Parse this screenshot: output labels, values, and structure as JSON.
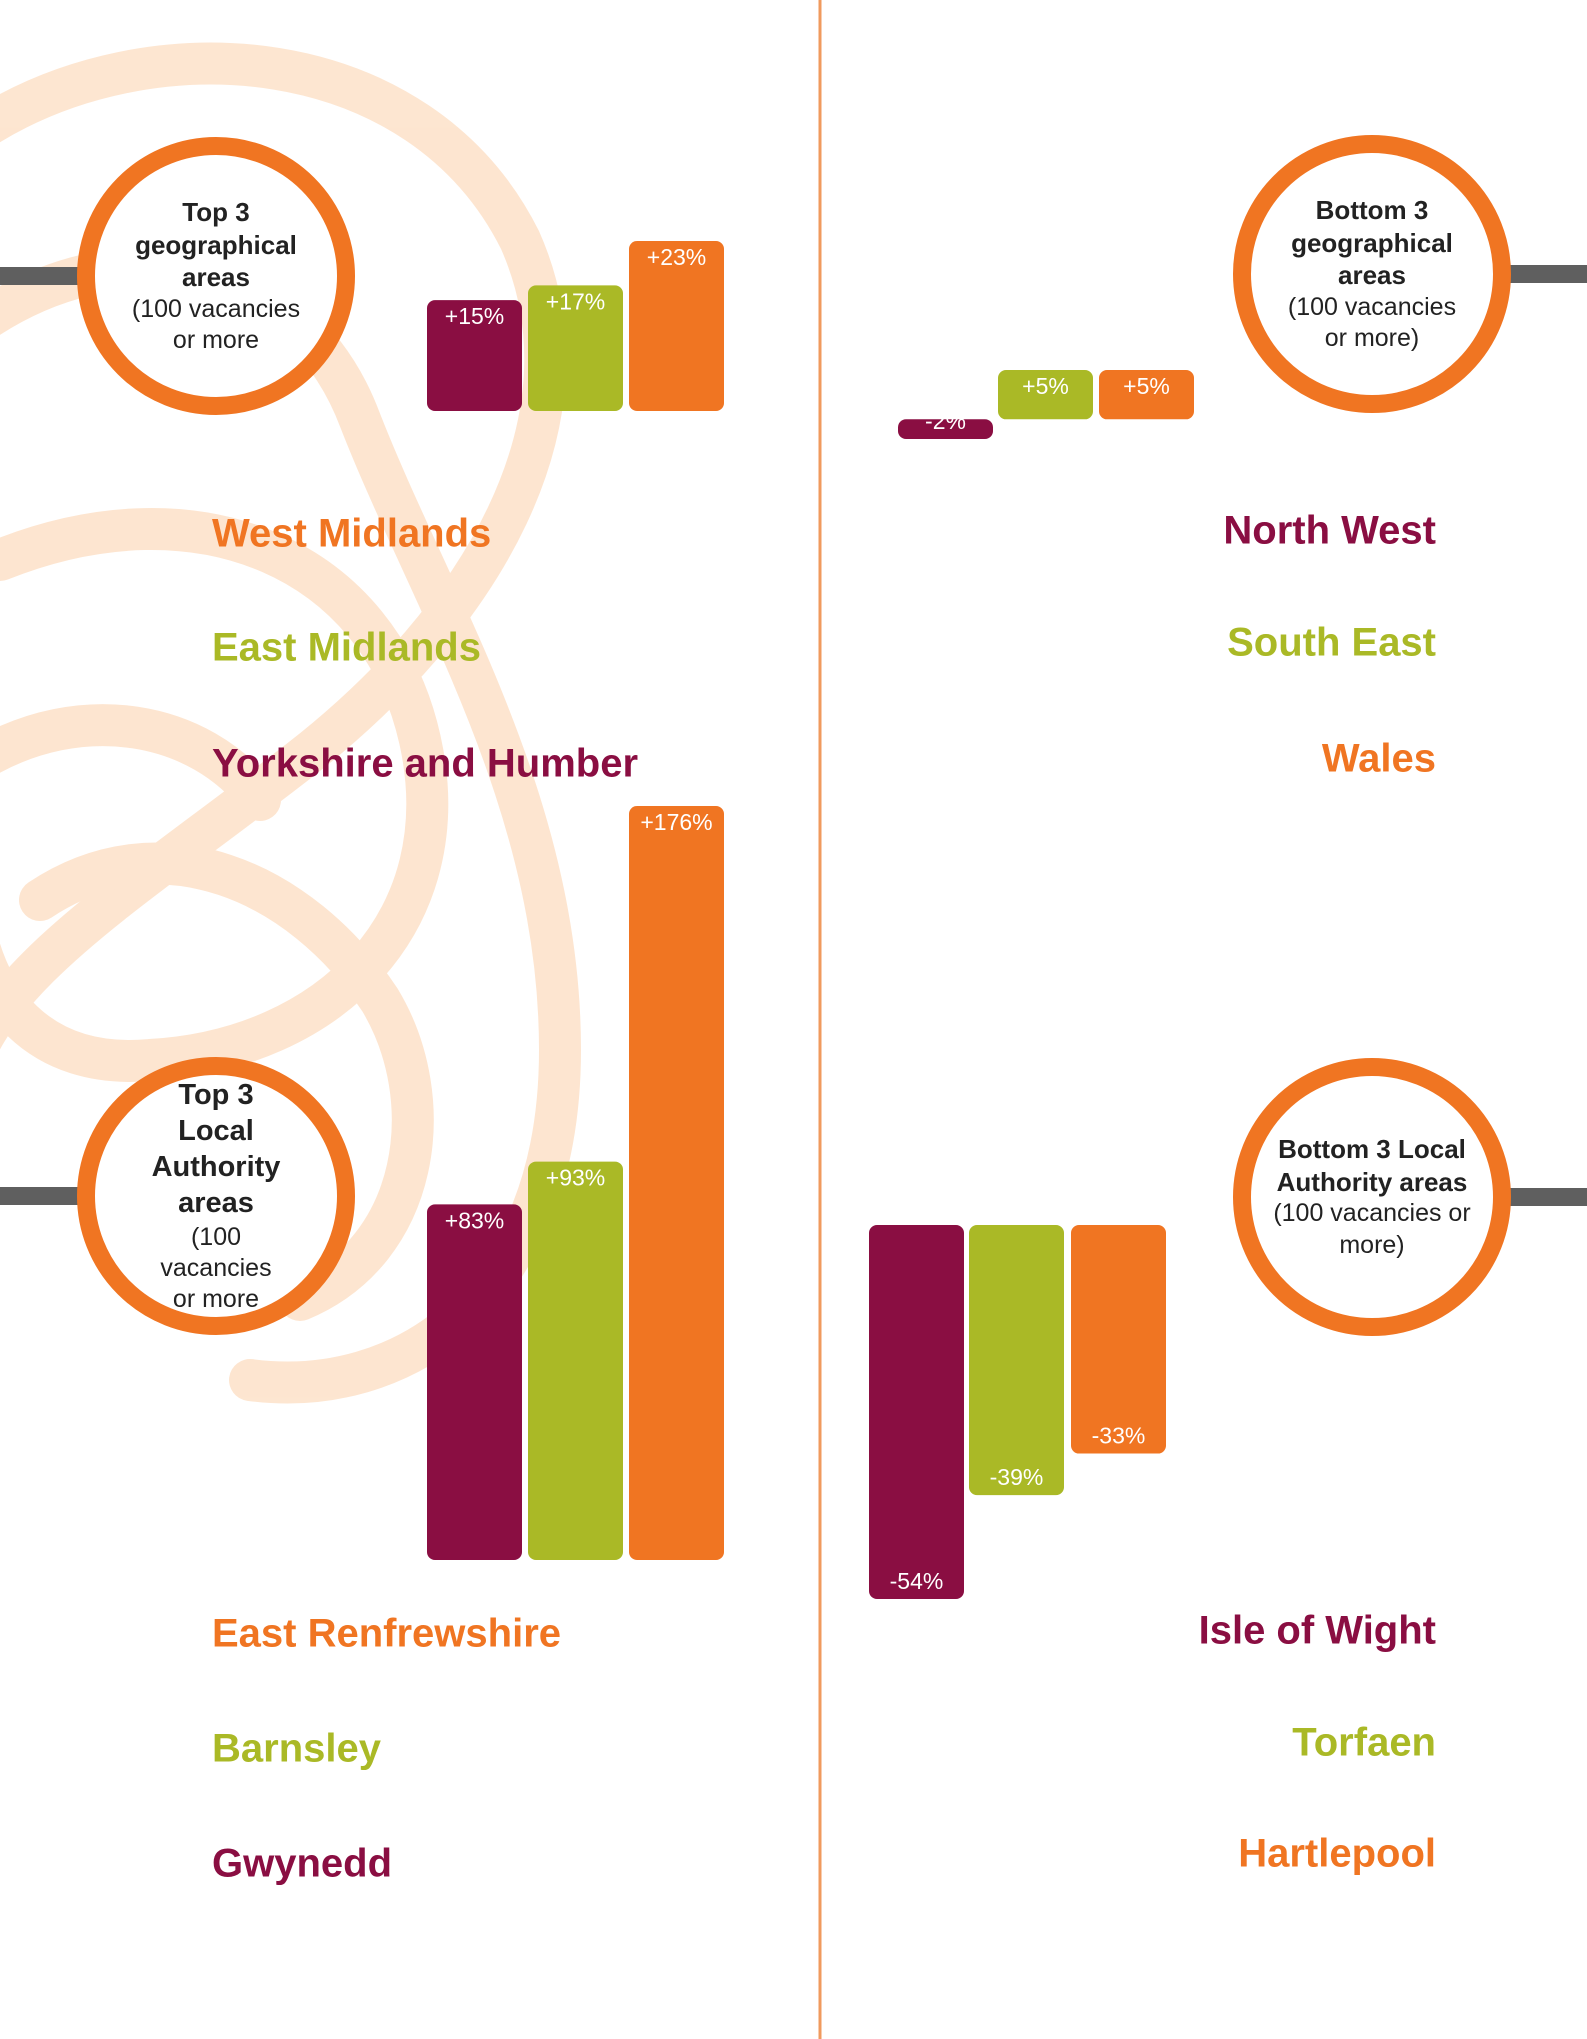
{
  "chart_data": [
    {
      "type": "bar",
      "title": "Top 3 geographical areas",
      "subtitle": "(100 vacancies or more",
      "categories": [
        "West Midlands",
        "East Midlands",
        "Yorkshire and Humber"
      ],
      "values": [
        23,
        17,
        15
      ],
      "value_labels": [
        "+23%",
        "+17%",
        "+15%"
      ],
      "colors": [
        "#f07522",
        "#aab926",
        "#8a0e42"
      ],
      "ylim": [
        0,
        23
      ]
    },
    {
      "type": "bar",
      "title": "Bottom 3 geographical areas",
      "subtitle": "(100 vacancies or more)",
      "categories": [
        "North West",
        "South East",
        "Wales"
      ],
      "values": [
        -2,
        5,
        5
      ],
      "value_labels": [
        "-2%",
        "+5%",
        "+5%"
      ],
      "colors": [
        "#8a0e42",
        "#aab926",
        "#f07522"
      ],
      "ylim": [
        -2,
        5
      ]
    },
    {
      "type": "bar",
      "title": "Top 3 Local Authority areas",
      "subtitle": "(100 vacancies or more",
      "categories": [
        "East Renfrewshire",
        "Barnsley",
        "Gwynedd"
      ],
      "values": [
        176,
        93,
        83
      ],
      "value_labels": [
        "+176%",
        "+93%",
        "+83%"
      ],
      "colors": [
        "#f07522",
        "#aab926",
        "#8a0e42"
      ],
      "ylim": [
        0,
        176
      ]
    },
    {
      "type": "bar",
      "title": "Bottom 3 Local Authority areas",
      "subtitle": "(100 vacancies or more)",
      "categories": [
        "Isle of Wight",
        "Torfaen",
        "Hartlepool"
      ],
      "values": [
        -54,
        -39,
        -33
      ],
      "value_labels": [
        "-54%",
        "-39%",
        "-33%"
      ],
      "colors": [
        "#8a0e42",
        "#aab926",
        "#f07522"
      ],
      "ylim": [
        -54,
        0
      ]
    }
  ]
}
